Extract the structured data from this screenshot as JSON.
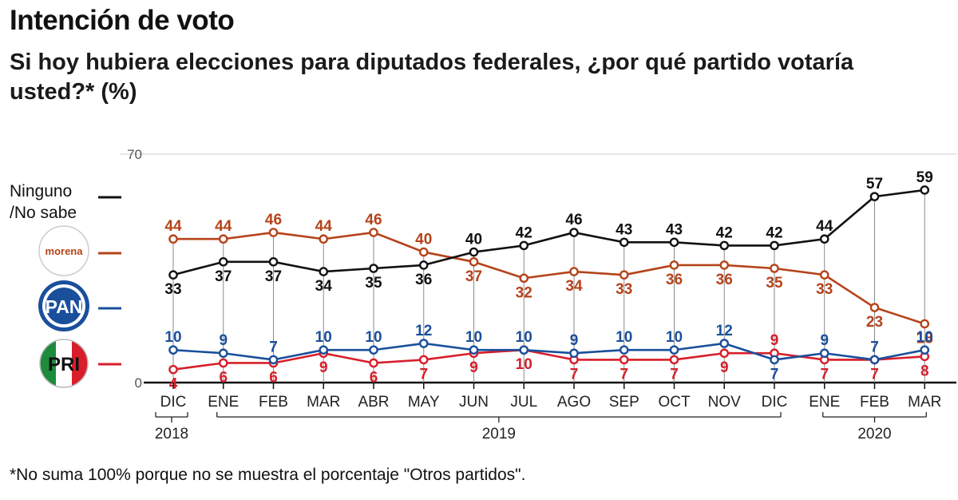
{
  "header": {
    "title": "Intención de voto",
    "subtitle": "Si hoy hubiera elecciones para diputados federales, ¿por qué partido votaría usted?* (%)"
  },
  "footnote": "*No suma 100% porque no se muestra el porcentaje \"Otros partidos\".",
  "legend": {
    "ninguno_line1": "Ninguno",
    "ninguno_line2": "/No sabe",
    "morena_logo_text": "morena",
    "pan_logo_text": "PAN",
    "pri_logo_text": "PRI"
  },
  "chart_data": {
    "type": "line",
    "categories": [
      "DIC",
      "ENE",
      "FEB",
      "MAR",
      "ABR",
      "MAY",
      "JUN",
      "JUL",
      "AGO",
      "SEP",
      "OCT",
      "NOV",
      "DIC",
      "ENE",
      "FEB",
      "MAR"
    ],
    "year_labels": [
      "2018",
      "2019",
      "2020"
    ],
    "ylim": [
      0,
      70
    ],
    "y_axis_labels": [
      "0",
      "70"
    ],
    "legend_position": "left",
    "grid": false,
    "series": [
      {
        "name": "Ninguno /No sabe",
        "color": "#111111",
        "values": [
          33,
          37,
          37,
          34,
          35,
          36,
          40,
          42,
          46,
          43,
          43,
          42,
          42,
          44,
          57,
          59
        ]
      },
      {
        "name": "morena",
        "color": "#b5431a",
        "values": [
          44,
          44,
          46,
          44,
          46,
          40,
          37,
          32,
          34,
          33,
          36,
          36,
          35,
          33,
          23,
          18
        ]
      },
      {
        "name": "PAN",
        "color": "#1a4f9c",
        "values": [
          10,
          9,
          7,
          10,
          10,
          12,
          10,
          10,
          9,
          10,
          10,
          12,
          7,
          9,
          7,
          10
        ]
      },
      {
        "name": "PRI",
        "color": "#d81e2a",
        "values": [
          4,
          6,
          6,
          9,
          6,
          7,
          9,
          10,
          7,
          7,
          7,
          9,
          9,
          7,
          7,
          8
        ]
      }
    ]
  }
}
